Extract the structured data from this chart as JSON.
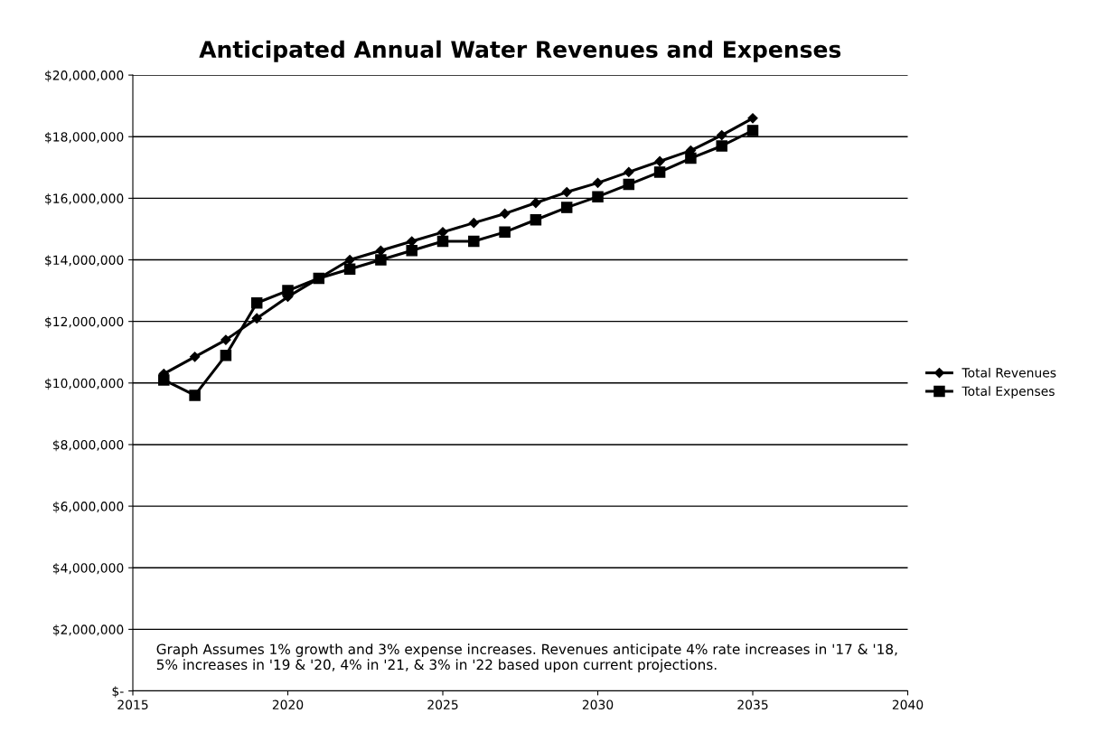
{
  "chart_data": {
    "type": "line",
    "title": "Anticipated Annual Water Revenues and Expenses",
    "x": [
      2016,
      2017,
      2018,
      2019,
      2020,
      2021,
      2022,
      2023,
      2024,
      2025,
      2026,
      2027,
      2028,
      2029,
      2030,
      2031,
      2032,
      2033,
      2034,
      2035
    ],
    "series": [
      {
        "name": "Total Revenues",
        "color": "#000000",
        "marker": "diamond",
        "values": [
          10300000,
          10850000,
          11400000,
          12100000,
          12800000,
          13400000,
          14000000,
          14300000,
          14600000,
          14900000,
          15200000,
          15500000,
          15850000,
          16200000,
          16500000,
          16850000,
          17200000,
          17550000,
          18050000,
          18600000
        ]
      },
      {
        "name": "Total Expenses",
        "color": "#000000",
        "marker": "square",
        "values": [
          10100000,
          9600000,
          10900000,
          12600000,
          13000000,
          13400000,
          13700000,
          14000000,
          14300000,
          14600000,
          14600000,
          14900000,
          15300000,
          15700000,
          16050000,
          16450000,
          16850000,
          17300000,
          17700000,
          18200000
        ]
      }
    ],
    "xlim": [
      2015,
      2040
    ],
    "xticks": [
      2015,
      2020,
      2025,
      2030,
      2035,
      2040
    ],
    "ylim": [
      0,
      20000000
    ],
    "yticks": [
      {
        "value": 0,
        "label": "$-"
      },
      {
        "value": 2000000,
        "label": "$2,000,000"
      },
      {
        "value": 4000000,
        "label": "$4,000,000"
      },
      {
        "value": 6000000,
        "label": "$6,000,000"
      },
      {
        "value": 8000000,
        "label": "$8,000,000"
      },
      {
        "value": 10000000,
        "label": "$10,000,000"
      },
      {
        "value": 12000000,
        "label": "$12,000,000"
      },
      {
        "value": 14000000,
        "label": "$14,000,000"
      },
      {
        "value": 16000000,
        "label": "$16,000,000"
      },
      {
        "value": 18000000,
        "label": "$18,000,000"
      },
      {
        "value": 20000000,
        "label": "$20,000,000"
      }
    ],
    "grid": "y",
    "legend": "right",
    "line_style": "solid",
    "annotations": [
      "Graph Assumes 1% growth and 3% expense increases. Revenues anticipate 4% rate increases in '17 & '18,\n5% increases in '19 & '20, 4% in '21, & 3% in '22 based upon current projections."
    ]
  }
}
